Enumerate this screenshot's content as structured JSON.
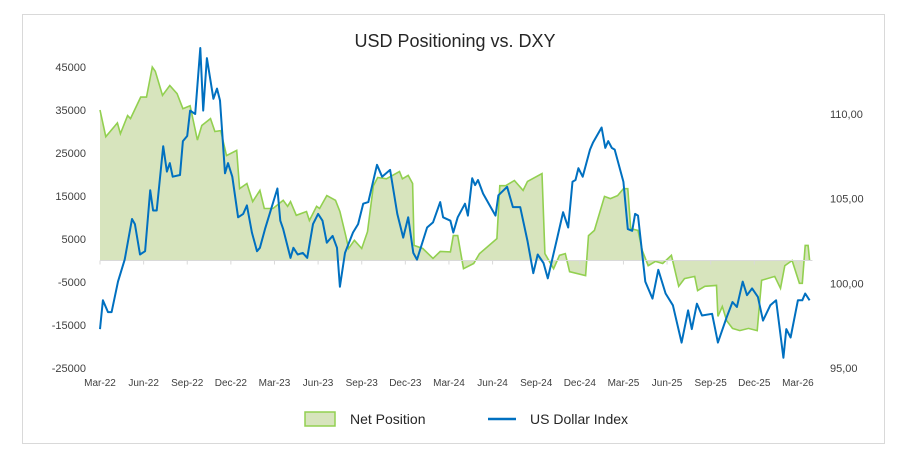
{
  "chart_data": {
    "type": "area+line",
    "title": "USD Positioning vs. DXY",
    "x_unit": "months since Mar-22",
    "xlim": [
      0,
      49
    ],
    "x_ticks": [
      {
        "m": 0,
        "label": "Mar-22"
      },
      {
        "m": 3,
        "label": "Jun-22"
      },
      {
        "m": 6,
        "label": "Sep-22"
      },
      {
        "m": 9,
        "label": "Dec-22"
      },
      {
        "m": 12,
        "label": "Mar-23"
      },
      {
        "m": 15,
        "label": "Jun-23"
      },
      {
        "m": 18,
        "label": "Sep-23"
      },
      {
        "m": 21,
        "label": "Dec-23"
      },
      {
        "m": 24,
        "label": "Mar-24"
      },
      {
        "m": 27,
        "label": "Jun-24"
      },
      {
        "m": 30,
        "label": "Sep-24"
      },
      {
        "m": 33,
        "label": "Dec-24"
      },
      {
        "m": 36,
        "label": "Mar-25"
      },
      {
        "m": 39,
        "label": "Jun-25"
      },
      {
        "m": 42,
        "label": "Sep-25"
      },
      {
        "m": 45,
        "label": "Dec-25"
      },
      {
        "m": 48,
        "label": "Mar-26"
      }
    ],
    "y_left": {
      "lim": [
        -25000,
        45000
      ],
      "ticks": [
        "45000",
        "35000",
        "25000",
        "15000",
        "5000",
        "-5000",
        "-15000",
        "-25000"
      ],
      "tick_values": [
        45000,
        35000,
        25000,
        15000,
        5000,
        -5000,
        -15000,
        -25000
      ]
    },
    "y_right": {
      "lim": [
        95,
        110
      ],
      "ticks": [
        "110,00",
        "105,00",
        "100,00",
        "95,00"
      ],
      "tick_values": [
        110,
        105,
        100,
        95
      ]
    },
    "legend_position": "bottom",
    "series": [
      {
        "name": "Net Position",
        "kind": "area",
        "axis": "left",
        "color": "#92d050",
        "fill": "#d7e4bd",
        "points": [
          [
            0,
            35000
          ],
          [
            0.4,
            28800
          ],
          [
            1.2,
            32000
          ],
          [
            1.4,
            29500
          ],
          [
            1.9,
            33700
          ],
          [
            2.1,
            33000
          ],
          [
            2.8,
            38000
          ],
          [
            3.2,
            38000
          ],
          [
            3.6,
            45000
          ],
          [
            3.8,
            44000
          ],
          [
            4.3,
            38400
          ],
          [
            4.8,
            40700
          ],
          [
            5.3,
            38800
          ],
          [
            5.7,
            35300
          ],
          [
            6.2,
            36000
          ],
          [
            6.7,
            28000
          ],
          [
            7.0,
            31400
          ],
          [
            7.6,
            33000
          ],
          [
            7.9,
            30000
          ],
          [
            8.3,
            30200
          ],
          [
            8.7,
            24400
          ],
          [
            9.4,
            25600
          ],
          [
            9.6,
            16700
          ],
          [
            10.1,
            17900
          ],
          [
            10.5,
            13700
          ],
          [
            11.0,
            16300
          ],
          [
            11.3,
            12100
          ],
          [
            11.9,
            12100
          ],
          [
            12.6,
            14000
          ],
          [
            12.9,
            12600
          ],
          [
            13.1,
            13700
          ],
          [
            13.5,
            10500
          ],
          [
            14.2,
            11400
          ],
          [
            14.4,
            9300
          ],
          [
            14.9,
            12600
          ],
          [
            15.1,
            12100
          ],
          [
            15.6,
            15100
          ],
          [
            16.2,
            14000
          ],
          [
            16.5,
            11400
          ],
          [
            16.9,
            5800
          ],
          [
            17.1,
            2800
          ],
          [
            17.5,
            4700
          ],
          [
            18.0,
            2800
          ],
          [
            18.4,
            6700
          ],
          [
            18.8,
            17400
          ],
          [
            19.1,
            19300
          ],
          [
            19.7,
            19000
          ],
          [
            20.6,
            20700
          ],
          [
            20.8,
            19000
          ],
          [
            21.2,
            19800
          ],
          [
            21.5,
            17900
          ],
          [
            21.6,
            3500
          ],
          [
            22.2,
            2800
          ],
          [
            22.9,
            500
          ],
          [
            23.4,
            2100
          ],
          [
            24.1,
            2000
          ],
          [
            24.3,
            5800
          ],
          [
            24.6,
            5800
          ],
          [
            25.0,
            -1900
          ],
          [
            25.7,
            -700
          ],
          [
            26.1,
            1600
          ],
          [
            27.3,
            5100
          ],
          [
            27.5,
            17400
          ],
          [
            27.9,
            17400
          ],
          [
            28.5,
            18600
          ],
          [
            29.1,
            16300
          ],
          [
            29.4,
            18400
          ],
          [
            30.4,
            20200
          ],
          [
            30.6,
            1600
          ],
          [
            31.2,
            -1900
          ],
          [
            31.6,
            1200
          ],
          [
            32.0,
            1600
          ],
          [
            32.3,
            -2600
          ],
          [
            33.4,
            -3500
          ],
          [
            33.6,
            5800
          ],
          [
            34.0,
            7000
          ],
          [
            34.7,
            14900
          ],
          [
            35.1,
            14400
          ],
          [
            35.6,
            15100
          ],
          [
            36.0,
            16700
          ],
          [
            36.3,
            16700
          ],
          [
            36.5,
            7400
          ],
          [
            37.0,
            7000
          ],
          [
            37.3,
            2300
          ],
          [
            37.7,
            -1200
          ],
          [
            38.2,
            -200
          ],
          [
            38.7,
            -700
          ],
          [
            39.3,
            1200
          ],
          [
            39.8,
            -6000
          ],
          [
            40.2,
            -4200
          ],
          [
            40.9,
            -3700
          ],
          [
            41.1,
            -7000
          ],
          [
            41.6,
            -6000
          ],
          [
            42.4,
            -5800
          ],
          [
            42.5,
            -13000
          ],
          [
            42.8,
            -10700
          ],
          [
            43.1,
            -14000
          ],
          [
            43.5,
            -15800
          ],
          [
            44.0,
            -16300
          ],
          [
            44.6,
            -15800
          ],
          [
            45.2,
            -16300
          ],
          [
            45.5,
            -4600
          ],
          [
            46.4,
            -3700
          ],
          [
            46.8,
            -6500
          ],
          [
            47.1,
            -1200
          ],
          [
            47.6,
            0
          ],
          [
            48.1,
            -5300
          ],
          [
            48.3,
            -5300
          ],
          [
            48.5,
            3500
          ],
          [
            48.7,
            3500
          ],
          [
            48.8,
            0
          ]
        ]
      },
      {
        "name": "US Dollar Index",
        "kind": "line",
        "axis": "right",
        "color": "#0070c0",
        "points": [
          [
            0,
            97.3
          ],
          [
            0.2,
            99.0
          ],
          [
            0.55,
            98.3
          ],
          [
            0.8,
            98.3
          ],
          [
            1.24,
            100.1
          ],
          [
            1.7,
            101.4
          ],
          [
            2.2,
            103.8
          ],
          [
            2.4,
            103.5
          ],
          [
            2.75,
            101.7
          ],
          [
            3.1,
            101.9
          ],
          [
            3.45,
            105.5
          ],
          [
            3.65,
            104.3
          ],
          [
            3.9,
            104.3
          ],
          [
            4.35,
            108.1
          ],
          [
            4.6,
            106.6
          ],
          [
            4.8,
            107.1
          ],
          [
            5.0,
            106.3
          ],
          [
            5.5,
            106.4
          ],
          [
            5.7,
            108.4
          ],
          [
            6.0,
            108.7
          ],
          [
            6.2,
            110.2
          ],
          [
            6.55,
            110.0
          ],
          [
            6.9,
            113.9
          ],
          [
            7.1,
            110.2
          ],
          [
            7.35,
            113.3
          ],
          [
            7.8,
            110.9
          ],
          [
            8.05,
            111.5
          ],
          [
            8.25,
            110.8
          ],
          [
            8.6,
            106.5
          ],
          [
            8.8,
            107.1
          ],
          [
            9.1,
            106.3
          ],
          [
            9.5,
            103.9
          ],
          [
            9.85,
            104.1
          ],
          [
            10.1,
            104.6
          ],
          [
            10.45,
            103.0
          ],
          [
            10.8,
            101.9
          ],
          [
            11.0,
            102.1
          ],
          [
            11.35,
            103.2
          ],
          [
            12.2,
            105.6
          ],
          [
            12.4,
            103.7
          ],
          [
            12.6,
            103.2
          ],
          [
            13.1,
            101.5
          ],
          [
            13.3,
            102.1
          ],
          [
            13.6,
            101.7
          ],
          [
            13.95,
            101.8
          ],
          [
            14.25,
            101.5
          ],
          [
            14.65,
            103.5
          ],
          [
            15.0,
            104.1
          ],
          [
            15.3,
            103.7
          ],
          [
            15.6,
            102.4
          ],
          [
            16.0,
            102.8
          ],
          [
            16.3,
            102.1
          ],
          [
            16.5,
            99.8
          ],
          [
            16.85,
            101.8
          ],
          [
            17.4,
            103.0
          ],
          [
            17.75,
            103.5
          ],
          [
            18.1,
            104.7
          ],
          [
            18.45,
            104.8
          ],
          [
            19.05,
            107.0
          ],
          [
            19.4,
            106.3
          ],
          [
            19.95,
            106.7
          ],
          [
            20.45,
            104.1
          ],
          [
            20.85,
            102.7
          ],
          [
            21.2,
            103.9
          ],
          [
            21.55,
            101.8
          ],
          [
            21.8,
            101.4
          ],
          [
            22.5,
            103.3
          ],
          [
            22.9,
            103.6
          ],
          [
            23.4,
            104.8
          ],
          [
            23.6,
            103.9
          ],
          [
            24.1,
            103.7
          ],
          [
            24.3,
            103.0
          ],
          [
            24.6,
            103.9
          ],
          [
            25.1,
            104.7
          ],
          [
            25.3,
            104.0
          ],
          [
            25.6,
            106.2
          ],
          [
            25.8,
            105.8
          ],
          [
            26.0,
            106.1
          ],
          [
            26.35,
            105.3
          ],
          [
            26.8,
            104.6
          ],
          [
            27.2,
            104.0
          ],
          [
            27.4,
            105.2
          ],
          [
            28.0,
            105.7
          ],
          [
            28.4,
            104.5
          ],
          [
            28.9,
            104.5
          ],
          [
            29.4,
            102.5
          ],
          [
            29.8,
            100.6
          ],
          [
            30.1,
            101.7
          ],
          [
            30.5,
            101.2
          ],
          [
            30.8,
            100.3
          ],
          [
            31.45,
            102.7
          ],
          [
            31.85,
            104.2
          ],
          [
            32.2,
            103.3
          ],
          [
            32.5,
            106.0
          ],
          [
            32.7,
            106.1
          ],
          [
            32.9,
            106.8
          ],
          [
            33.2,
            106.3
          ],
          [
            33.7,
            107.9
          ],
          [
            33.9,
            108.3
          ],
          [
            34.5,
            109.2
          ],
          [
            34.75,
            108.0
          ],
          [
            34.95,
            108.4
          ],
          [
            35.2,
            108.0
          ],
          [
            35.4,
            107.9
          ],
          [
            36.0,
            106.0
          ],
          [
            36.3,
            103.2
          ],
          [
            36.6,
            103.1
          ],
          [
            36.8,
            104.1
          ],
          [
            37.0,
            104.0
          ],
          [
            37.5,
            100.1
          ],
          [
            38.0,
            99.1
          ],
          [
            38.4,
            100.8
          ],
          [
            38.9,
            99.4
          ],
          [
            39.4,
            98.7
          ],
          [
            40.0,
            96.5
          ],
          [
            40.45,
            98.4
          ],
          [
            40.7,
            97.3
          ],
          [
            41.05,
            98.8
          ],
          [
            41.4,
            98.1
          ],
          [
            42.1,
            98.2
          ],
          [
            42.5,
            96.5
          ],
          [
            43.1,
            98.0
          ],
          [
            43.5,
            98.9
          ],
          [
            43.8,
            98.6
          ],
          [
            44.2,
            100.1
          ],
          [
            44.5,
            99.3
          ],
          [
            44.85,
            99.7
          ],
          [
            45.25,
            99.2
          ],
          [
            45.6,
            97.8
          ],
          [
            46.1,
            98.7
          ],
          [
            46.5,
            99.0
          ],
          [
            47.0,
            95.6
          ],
          [
            47.2,
            97.3
          ],
          [
            47.5,
            96.8
          ],
          [
            48.0,
            99.0
          ],
          [
            48.3,
            99.0
          ],
          [
            48.5,
            99.4
          ],
          [
            48.8,
            99.0
          ]
        ]
      }
    ]
  }
}
